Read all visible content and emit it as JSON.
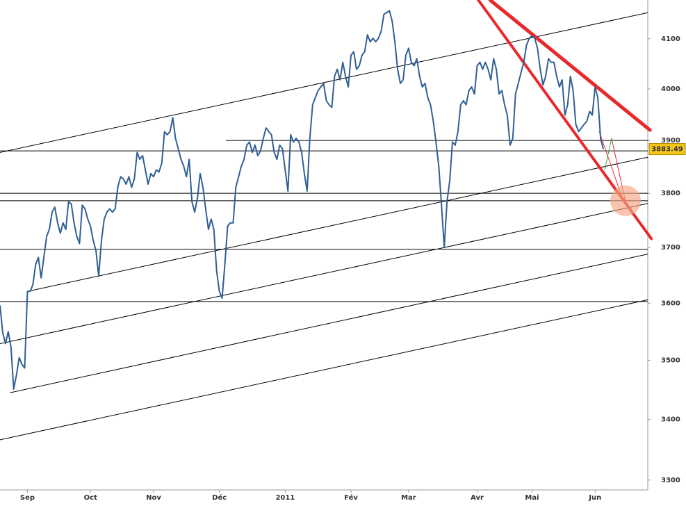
{
  "chart_data": {
    "type": "line",
    "log": true,
    "grid": false,
    "series": [
      {
        "color": "#2f5f94",
        "values": [
          3596,
          3548,
          3529,
          3550,
          3523,
          3451,
          3475,
          3505,
          3493,
          3487,
          3621,
          3621,
          3633,
          3669,
          3682,
          3645,
          3682,
          3720,
          3733,
          3765,
          3774,
          3745,
          3726,
          3745,
          3733,
          3784,
          3780,
          3745,
          3720,
          3707,
          3778,
          3771,
          3752,
          3739,
          3713,
          3694,
          3648,
          3713,
          3752,
          3765,
          3771,
          3765,
          3771,
          3813,
          3831,
          3827,
          3817,
          3831,
          3811,
          3827,
          3877,
          3864,
          3871,
          3844,
          3817,
          3837,
          3831,
          3844,
          3840,
          3857,
          3917,
          3911,
          3917,
          3944,
          3904,
          3884,
          3864,
          3851,
          3831,
          3864,
          3784,
          3765,
          3791,
          3837,
          3811,
          3771,
          3733,
          3752,
          3733,
          3657,
          3621,
          3609,
          3669,
          3739,
          3745,
          3745,
          3811,
          3831,
          3851,
          3864,
          3891,
          3897,
          3877,
          3891,
          3871,
          3880,
          3904,
          3924,
          3917,
          3911,
          3877,
          3864,
          3891,
          3884,
          3844,
          3804,
          3911,
          3897,
          3904,
          3897,
          3877,
          3837,
          3804,
          3904,
          3969,
          3983,
          3997,
          4004,
          4011,
          3977,
          3969,
          3964,
          4025,
          4039,
          4018,
          4053,
          4025,
          4004,
          4067,
          4074,
          4039,
          4046,
          4067,
          4074,
          4108,
          4094,
          4101,
          4094,
          4101,
          4115,
          4150,
          4153,
          4157,
          4136,
          4094,
          4039,
          4011,
          4018,
          4067,
          4081,
          4053,
          4046,
          4060,
          4025,
          4004,
          4011,
          3983,
          3969,
          3937,
          3897,
          3851,
          3778,
          3700,
          3784,
          3824,
          3897,
          3891,
          3917,
          3969,
          3977,
          3969,
          3997,
          4004,
          3990,
          4046,
          4053,
          4039,
          4053,
          4039,
          4018,
          4060,
          4039,
          3990,
          3997,
          3969,
          3949,
          3891,
          3904,
          3990,
          4011,
          4032,
          4053,
          4087,
          4101,
          4106,
          4101,
          4081,
          4039,
          4008,
          4025,
          4060,
          4053,
          4053,
          4025,
          4004,
          4018,
          3949,
          3969,
          4025,
          3997,
          3931,
          3917,
          3924,
          3931,
          3937,
          3956,
          3949,
          4004,
          3983,
          3904,
          3883.49
        ]
      }
    ],
    "xlim": [
      0,
      236.2
    ],
    "xticks": [
      {
        "value": 10,
        "label": "Sep"
      },
      {
        "value": 33,
        "label": "Oct"
      },
      {
        "value": 56,
        "label": "Nov"
      },
      {
        "value": 80,
        "label": "Déc"
      },
      {
        "value": 104,
        "label": "2011"
      },
      {
        "value": 128,
        "label": "Fév"
      },
      {
        "value": 149,
        "label": "Mar"
      },
      {
        "value": 174,
        "label": "Avr"
      },
      {
        "value": 194,
        "label": "Mai"
      },
      {
        "value": 217,
        "label": "Jun"
      }
    ],
    "ylim": [
      3284,
      4179
    ],
    "yticks": [
      3300,
      3400,
      3500,
      3600,
      3700,
      3800,
      3900,
      4000,
      4100
    ],
    "hlines": [
      {
        "y": 3880,
        "x": 0
      },
      {
        "y": 3900,
        "x": 82.4
      },
      {
        "y": 3800,
        "x": 0
      },
      {
        "y": 3786,
        "x": 0
      },
      {
        "y": 3697,
        "x": 0
      },
      {
        "y": 3603,
        "x": 0
      }
    ],
    "lines": [
      {
        "x": [
          0,
          236.2
        ],
        "y": [
          3877,
          4153
        ],
        "color": "#000000",
        "width": 1
      },
      {
        "x": [
          10.1,
          236.2
        ],
        "y": [
          3621,
          3868
        ],
        "color": "#000000",
        "width": 1
      },
      {
        "x": [
          0,
          236.2
        ],
        "y": [
          3529,
          3781
        ],
        "color": "#000000",
        "width": 1
      },
      {
        "x": [
          3.8,
          236.2
        ],
        "y": [
          3445,
          3688
        ],
        "color": "#000000",
        "width": 1
      },
      {
        "x": [
          0,
          236.2
        ],
        "y": [
          3366,
          3606
        ],
        "color": "#000000",
        "width": 1
      },
      {
        "x": [
          178.7,
          237
        ],
        "y": [
          4179,
          3920
        ],
        "color": "#e8282b",
        "width": 5
      },
      {
        "x": [
          174.4,
          237.5
        ],
        "y": [
          4179,
          3716
        ],
        "color": "#e8282b",
        "width": 4
      },
      {
        "x": [
          218.5,
          227.4
        ],
        "y": [
          3917,
          3784
        ],
        "color": "#e8282b",
        "width": 1
      },
      {
        "x": [
          223,
          228.1
        ],
        "y": [
          3904,
          3784
        ],
        "color": "#e8282b",
        "width": 1
      },
      {
        "x": [
          220.5,
          223
        ],
        "y": [
          3844,
          3904
        ],
        "color": "#3aa33a",
        "width": 1
      }
    ],
    "circle": {
      "x": 228.1,
      "y": 3786,
      "color": "#f4a582"
    }
  }
}
